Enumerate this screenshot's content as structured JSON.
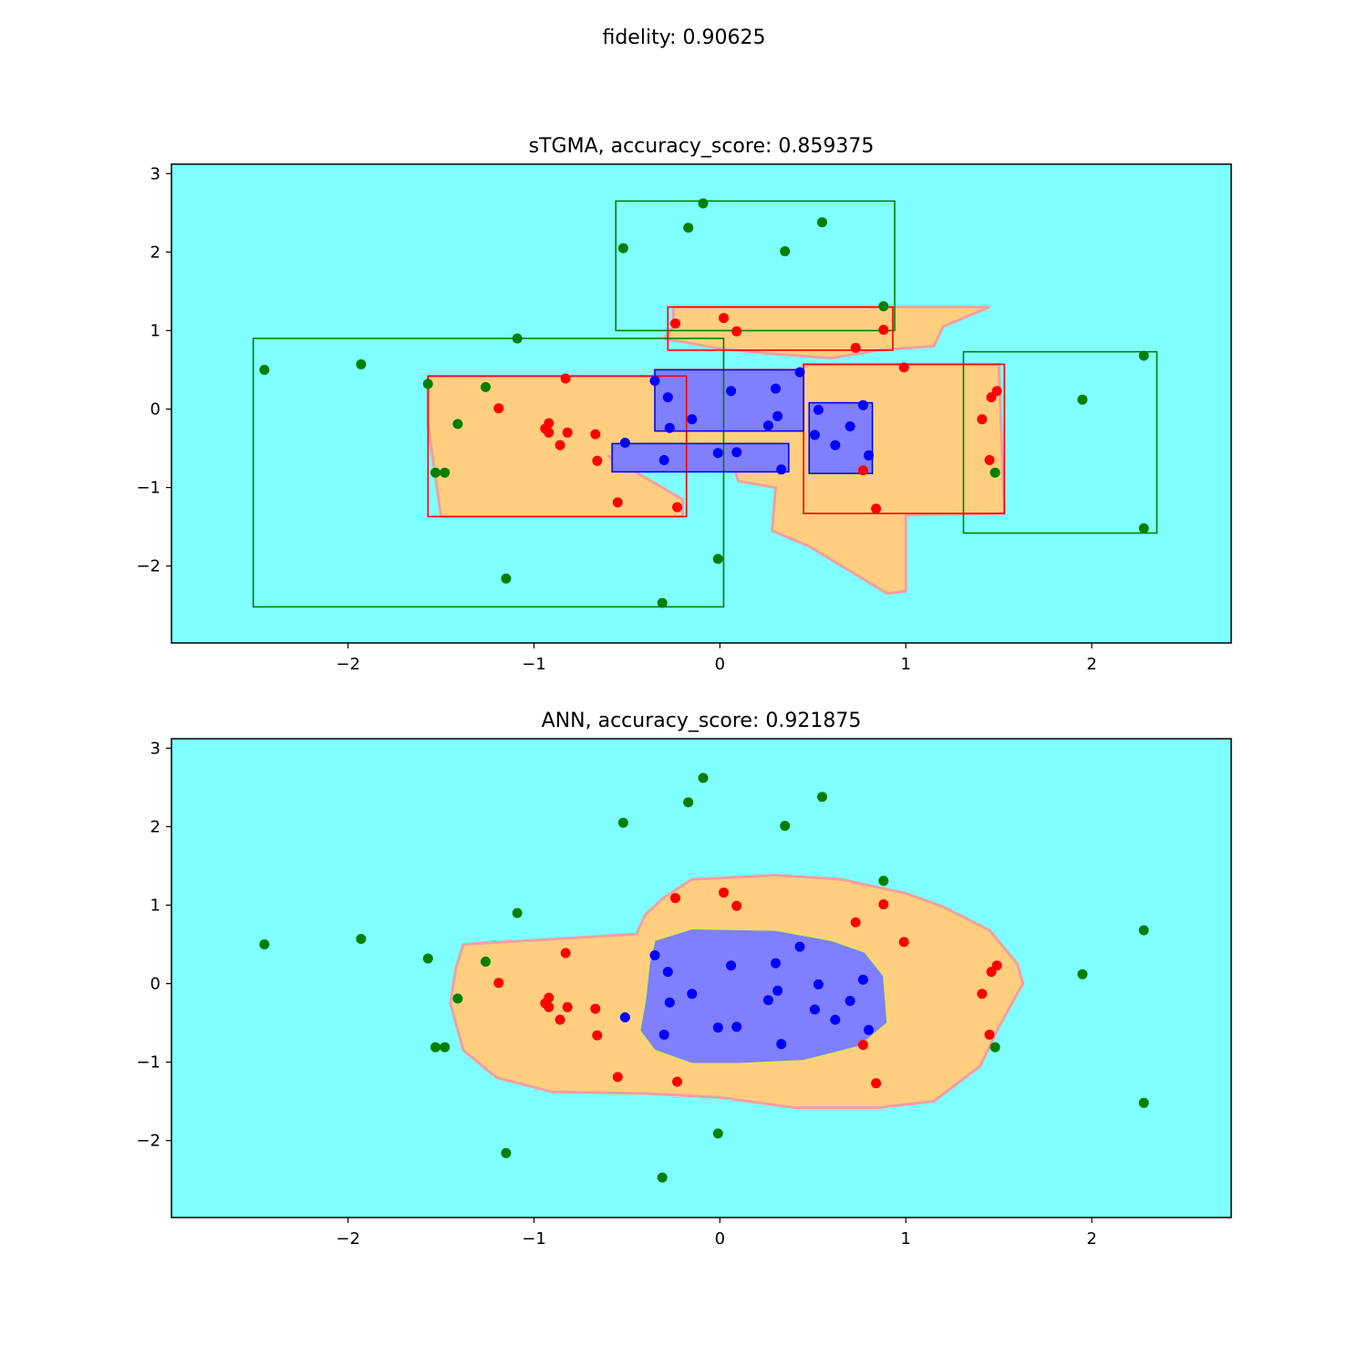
{
  "figure": {
    "suptitle": "fidelity: 0.90625"
  },
  "colors": {
    "background_class": "#7fffff",
    "ring_class": "#ffcf7f",
    "core_class": "#7f7fff",
    "points_outer": "#008000",
    "points_ring": "#ff0000",
    "points_core": "#0000ff",
    "box_outer": "#008000",
    "box_ring": "#ff0000",
    "box_core": "#0000ff"
  },
  "chart_data": [
    {
      "type": "scatter",
      "title": "sTGMA, accuracy_score: 0.859375",
      "xlim": [
        -2.95,
        2.75
      ],
      "ylim": [
        -2.98,
        3.12
      ],
      "xticks": [
        -2,
        -1,
        0,
        1,
        2
      ],
      "yticks": [
        -2,
        -1,
        0,
        1,
        2,
        3
      ],
      "grid": false,
      "legend": "none",
      "series": [
        {
          "class": 0,
          "color": "#008000",
          "x": [
            -2.45,
            -1.93,
            -1.09,
            -1.57,
            -1.26,
            -1.41,
            -1.53,
            -1.48,
            0.88,
            2.28,
            1.95,
            2.28,
            1.48,
            -0.52,
            -0.17,
            -0.09,
            0.35,
            0.55,
            -0.01,
            -1.15,
            -0.31
          ],
          "y": [
            0.5,
            0.57,
            0.9,
            0.32,
            0.28,
            -0.19,
            -0.81,
            -0.81,
            1.31,
            0.68,
            0.12,
            -1.52,
            -0.81,
            2.05,
            2.31,
            2.62,
            2.01,
            2.38,
            -1.91,
            -2.16,
            -2.47
          ]
        },
        {
          "class": 1,
          "color": "#ff0000",
          "x": [
            -1.19,
            -0.83,
            -0.92,
            -0.94,
            -0.92,
            -0.82,
            -0.86,
            -0.67,
            -0.66,
            -0.55,
            -0.23,
            -0.24,
            0.02,
            0.09,
            0.73,
            0.88,
            0.99,
            1.41,
            1.46,
            1.49,
            1.45,
            0.77,
            0.84
          ],
          "y": [
            0.01,
            0.39,
            -0.18,
            -0.25,
            -0.3,
            -0.3,
            -0.46,
            -0.32,
            -0.66,
            -1.19,
            -1.25,
            1.09,
            1.16,
            0.99,
            0.78,
            1.01,
            0.53,
            -0.13,
            0.15,
            0.23,
            -0.65,
            -0.78,
            -1.27
          ]
        },
        {
          "class": 2,
          "color": "#0000ff",
          "x": [
            -0.35,
            -0.28,
            -0.27,
            -0.15,
            -0.51,
            -0.3,
            -0.01,
            0.09,
            0.06,
            0.3,
            0.31,
            0.26,
            0.43,
            0.33,
            0.53,
            0.51,
            0.62,
            0.7,
            0.77,
            0.8
          ],
          "y": [
            0.36,
            0.15,
            -0.24,
            -0.13,
            -0.43,
            -0.65,
            -0.56,
            -0.55,
            0.23,
            0.26,
            -0.09,
            -0.21,
            0.47,
            -0.77,
            -0.01,
            -0.33,
            -0.46,
            -0.22,
            0.05,
            -0.59
          ]
        }
      ],
      "regions": {
        "ring": [
          [
            [
              -1.57,
              0.42
            ],
            [
              -0.35,
              0.42
            ],
            [
              -0.35,
              0.5
            ],
            [
              0.45,
              0.5
            ],
            [
              0.45,
              0.57
            ],
            [
              1.5,
              0.57
            ],
            [
              1.53,
              -1.33
            ],
            [
              1.0,
              -1.35
            ],
            [
              1.0,
              -2.32
            ],
            [
              0.9,
              -2.35
            ],
            [
              0.48,
              -1.75
            ],
            [
              0.28,
              -1.55
            ],
            [
              0.3,
              -1.0
            ],
            [
              0.1,
              -0.92
            ],
            [
              0.05,
              -0.6
            ],
            [
              -0.6,
              -0.6
            ],
            [
              -0.2,
              -1.15
            ],
            [
              -0.2,
              -1.37
            ],
            [
              -1.5,
              -1.37
            ],
            [
              -1.57,
              -0.2
            ]
          ],
          [
            [
              -0.25,
              1.3
            ],
            [
              1.45,
              1.3
            ],
            [
              1.2,
              1.05
            ],
            [
              1.15,
              0.8
            ],
            [
              0.85,
              0.75
            ],
            [
              0.6,
              0.65
            ],
            [
              0.3,
              0.7
            ],
            [
              0.0,
              0.77
            ],
            [
              -0.3,
              0.9
            ],
            [
              -0.25,
              1.05
            ]
          ]
        ],
        "core": [
          [
            [
              -0.35,
              0.5
            ],
            [
              0.45,
              0.5
            ],
            [
              0.45,
              -0.28
            ],
            [
              -0.35,
              -0.28
            ]
          ],
          [
            [
              -0.58,
              -0.44
            ],
            [
              0.37,
              -0.44
            ],
            [
              0.37,
              -0.8
            ],
            [
              -0.58,
              -0.8
            ]
          ],
          [
            [
              0.48,
              0.08
            ],
            [
              0.82,
              0.08
            ],
            [
              0.82,
              -0.82
            ],
            [
              0.48,
              -0.82
            ]
          ]
        ]
      },
      "boxes": [
        {
          "class": 0,
          "x": [
            -2.51,
            0.02
          ],
          "y": [
            -2.52,
            0.9
          ]
        },
        {
          "class": 0,
          "x": [
            -0.56,
            0.94
          ],
          "y": [
            1.0,
            2.65
          ]
        },
        {
          "class": 0,
          "x": [
            1.31,
            2.35
          ],
          "y": [
            -1.58,
            0.73
          ]
        },
        {
          "class": 1,
          "x": [
            -1.57,
            -0.18
          ],
          "y": [
            -1.37,
            0.42
          ]
        },
        {
          "class": 1,
          "x": [
            -0.28,
            0.93
          ],
          "y": [
            0.75,
            1.3
          ]
        },
        {
          "class": 1,
          "x": [
            0.45,
            1.53
          ],
          "y": [
            -1.33,
            0.57
          ]
        },
        {
          "class": 2,
          "x": [
            -0.35,
            0.45
          ],
          "y": [
            -0.28,
            0.5
          ]
        },
        {
          "class": 2,
          "x": [
            -0.58,
            0.37
          ],
          "y": [
            -0.8,
            -0.44
          ]
        },
        {
          "class": 2,
          "x": [
            0.48,
            0.82
          ],
          "y": [
            -0.82,
            0.08
          ]
        }
      ]
    },
    {
      "type": "scatter",
      "title": "ANN, accuracy_score: 0.921875",
      "xlim": [
        -2.95,
        2.75
      ],
      "ylim": [
        -2.98,
        3.12
      ],
      "xticks": [
        -2,
        -1,
        0,
        1,
        2
      ],
      "yticks": [
        -2,
        -1,
        0,
        1,
        2,
        3
      ],
      "grid": false,
      "legend": "none",
      "series": [
        {
          "class": 0,
          "color": "#008000",
          "x": [
            -2.45,
            -1.93,
            -1.09,
            -1.57,
            -1.26,
            -1.41,
            -1.53,
            -1.48,
            0.88,
            2.28,
            1.95,
            2.28,
            1.48,
            -0.52,
            -0.17,
            -0.09,
            0.35,
            0.55,
            -0.01,
            -1.15,
            -0.31
          ],
          "y": [
            0.5,
            0.57,
            0.9,
            0.32,
            0.28,
            -0.19,
            -0.81,
            -0.81,
            1.31,
            0.68,
            0.12,
            -1.52,
            -0.81,
            2.05,
            2.31,
            2.62,
            2.01,
            2.38,
            -1.91,
            -2.16,
            -2.47
          ]
        },
        {
          "class": 1,
          "color": "#ff0000",
          "x": [
            -1.19,
            -0.83,
            -0.92,
            -0.94,
            -0.92,
            -0.82,
            -0.86,
            -0.67,
            -0.66,
            -0.55,
            -0.23,
            -0.24,
            0.02,
            0.09,
            0.73,
            0.88,
            0.99,
            1.41,
            1.46,
            1.49,
            1.45,
            0.77,
            0.84
          ],
          "y": [
            0.01,
            0.39,
            -0.18,
            -0.25,
            -0.3,
            -0.3,
            -0.46,
            -0.32,
            -0.66,
            -1.19,
            -1.25,
            1.09,
            1.16,
            0.99,
            0.78,
            1.01,
            0.53,
            -0.13,
            0.15,
            0.23,
            -0.65,
            -0.78,
            -1.27
          ]
        },
        {
          "class": 2,
          "color": "#0000ff",
          "x": [
            -0.35,
            -0.28,
            -0.27,
            -0.15,
            -0.51,
            -0.3,
            -0.01,
            0.09,
            0.06,
            0.3,
            0.31,
            0.26,
            0.43,
            0.33,
            0.53,
            0.51,
            0.62,
            0.7,
            0.77,
            0.8
          ],
          "y": [
            0.36,
            0.15,
            -0.24,
            -0.13,
            -0.43,
            -0.65,
            -0.56,
            -0.55,
            0.23,
            0.26,
            -0.09,
            -0.21,
            0.47,
            -0.77,
            -0.01,
            -0.33,
            -0.46,
            -0.22,
            0.05,
            -0.59
          ]
        }
      ],
      "regions": {
        "ring": [
          [
            [
              -1.38,
              0.5
            ],
            [
              -0.45,
              0.63
            ],
            [
              -0.4,
              0.88
            ],
            [
              -0.3,
              1.1
            ],
            [
              -0.15,
              1.33
            ],
            [
              0.3,
              1.38
            ],
            [
              0.65,
              1.33
            ],
            [
              1.0,
              1.15
            ],
            [
              1.2,
              0.98
            ],
            [
              1.45,
              0.68
            ],
            [
              1.6,
              0.25
            ],
            [
              1.63,
              0.0
            ],
            [
              1.5,
              -0.55
            ],
            [
              1.4,
              -1.05
            ],
            [
              1.15,
              -1.5
            ],
            [
              0.85,
              -1.58
            ],
            [
              0.4,
              -1.58
            ],
            [
              0.0,
              -1.45
            ],
            [
              -0.4,
              -1.4
            ],
            [
              -0.9,
              -1.38
            ],
            [
              -1.2,
              -1.2
            ],
            [
              -1.38,
              -0.85
            ],
            [
              -1.45,
              -0.25
            ],
            [
              -1.42,
              0.2
            ]
          ]
        ],
        "core": [
          [
            [
              -0.35,
              0.55
            ],
            [
              -0.15,
              0.7
            ],
            [
              0.3,
              0.68
            ],
            [
              0.6,
              0.55
            ],
            [
              0.78,
              0.4
            ],
            [
              0.88,
              0.1
            ],
            [
              0.9,
              -0.5
            ],
            [
              0.75,
              -0.8
            ],
            [
              0.45,
              -0.98
            ],
            [
              0.1,
              -1.02
            ],
            [
              -0.15,
              -1.02
            ],
            [
              -0.35,
              -0.85
            ],
            [
              -0.43,
              -0.6
            ],
            [
              -0.4,
              -0.2
            ],
            [
              -0.38,
              0.25
            ]
          ]
        ]
      },
      "boxes": []
    }
  ]
}
